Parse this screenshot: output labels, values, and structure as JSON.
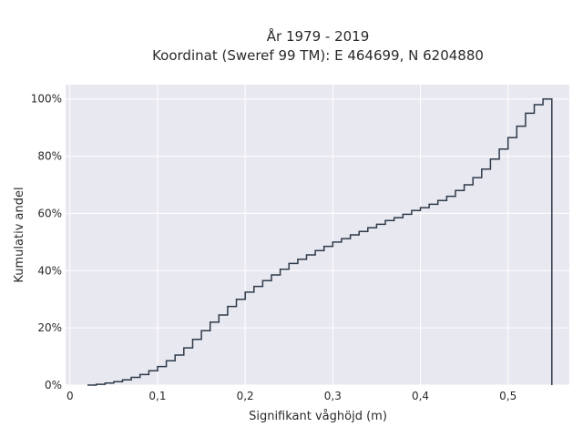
{
  "chart_data": {
    "type": "line",
    "subtype": "cumulative-step",
    "title_line1": "År 1979 - 2019",
    "title_line2": "Koordinat (Sweref 99 TM): E 464699, N 6204880",
    "xlabel": "Signifikant våghöjd (m)",
    "ylabel": "Kumulativ andel",
    "xlim": [
      -0.005,
      0.57
    ],
    "ylim": [
      0,
      1.05
    ],
    "x_ticks": [
      0,
      0.1,
      0.2,
      0.3,
      0.4,
      0.5
    ],
    "x_tick_labels": [
      "0",
      "0,1",
      "0,2",
      "0,3",
      "0,4",
      "0,5"
    ],
    "y_ticks": [
      0,
      0.2,
      0.4,
      0.6,
      0.8,
      1.0
    ],
    "y_tick_labels": [
      "0%",
      "20%",
      "40%",
      "60%",
      "80%",
      "100%"
    ],
    "grid": true,
    "background": "#e8e8f0",
    "line_color": "#2e3a4a",
    "series": [
      {
        "x": [
          0.02,
          0.03,
          0.04,
          0.05,
          0.06,
          0.07,
          0.08,
          0.09,
          0.1,
          0.11,
          0.12,
          0.13,
          0.14,
          0.15,
          0.16,
          0.17,
          0.18,
          0.19,
          0.2,
          0.21,
          0.22,
          0.23,
          0.24,
          0.25,
          0.26,
          0.27,
          0.28,
          0.29,
          0.3,
          0.31,
          0.32,
          0.33,
          0.34,
          0.35,
          0.36,
          0.37,
          0.38,
          0.39,
          0.4,
          0.41,
          0.42,
          0.43,
          0.44,
          0.45,
          0.46,
          0.47,
          0.48,
          0.49,
          0.5,
          0.51,
          0.52,
          0.53,
          0.54
        ],
        "y": [
          0.0,
          0.003,
          0.007,
          0.012,
          0.018,
          0.027,
          0.037,
          0.05,
          0.065,
          0.085,
          0.105,
          0.13,
          0.16,
          0.19,
          0.22,
          0.245,
          0.275,
          0.3,
          0.325,
          0.345,
          0.365,
          0.385,
          0.405,
          0.425,
          0.44,
          0.455,
          0.47,
          0.485,
          0.5,
          0.512,
          0.525,
          0.537,
          0.55,
          0.562,
          0.575,
          0.585,
          0.597,
          0.61,
          0.62,
          0.632,
          0.645,
          0.66,
          0.68,
          0.7,
          0.725,
          0.755,
          0.79,
          0.825,
          0.865,
          0.905,
          0.95,
          0.98,
          1.0
        ]
      }
    ]
  }
}
